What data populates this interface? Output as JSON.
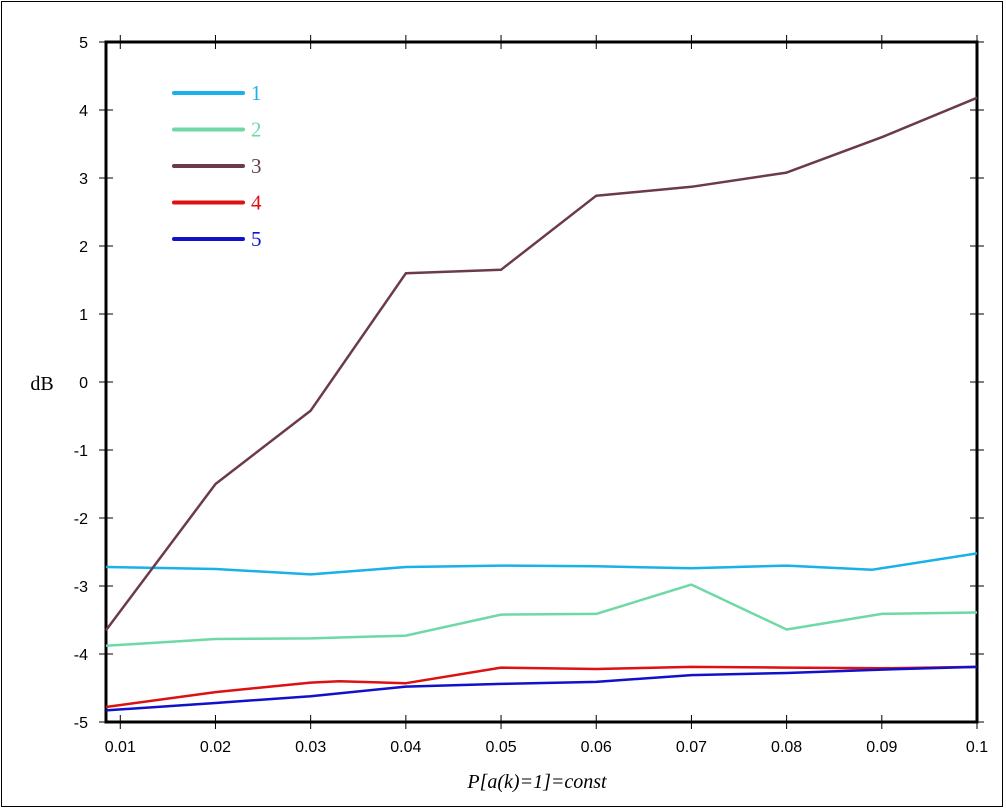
{
  "chart_data": {
    "type": "line",
    "xlabel": "P[a(k)=1]=const",
    "ylabel": "dB",
    "xlim": [
      0.0085,
      0.1
    ],
    "ylim": [
      -5,
      5
    ],
    "x_ticks": [
      0.01,
      0.02,
      0.03,
      0.04,
      0.05,
      0.06,
      0.07,
      0.08,
      0.09,
      0.1
    ],
    "x_tick_labels": [
      "0.01",
      "0.02",
      "0.03",
      "0.04",
      "0.05",
      "0.06",
      "0.07",
      "0.08",
      "0.09",
      "0.1"
    ],
    "y_ticks": [
      5,
      4,
      3,
      2,
      1,
      0,
      -1,
      -2,
      -3,
      -4,
      -5
    ],
    "y_tick_labels": [
      "5",
      "4",
      "3",
      "2",
      "1",
      "0",
      "-1",
      "-2",
      "-3",
      "-4",
      "-5"
    ],
    "grid": false,
    "legend_position": "top-left",
    "series": [
      {
        "name": "1",
        "color": "#1ab0ea",
        "x": [
          0.0085,
          0.02,
          0.03,
          0.04,
          0.05,
          0.06,
          0.07,
          0.08,
          0.089,
          0.1
        ],
        "y": [
          -2.72,
          -2.75,
          -2.83,
          -2.72,
          -2.7,
          -2.71,
          -2.74,
          -2.7,
          -2.76,
          -2.52
        ]
      },
      {
        "name": "2",
        "color": "#6fd9a5",
        "x": [
          0.0085,
          0.02,
          0.03,
          0.04,
          0.05,
          0.06,
          0.07,
          0.08,
          0.09,
          0.1
        ],
        "y": [
          -3.88,
          -3.78,
          -3.77,
          -3.73,
          -3.42,
          -3.41,
          -2.98,
          -3.64,
          -3.41,
          -3.39
        ]
      },
      {
        "name": "3",
        "color": "#6b3a4c",
        "x": [
          0.0085,
          0.02,
          0.03,
          0.04,
          0.05,
          0.06,
          0.07,
          0.08,
          0.09,
          0.1
        ],
        "y": [
          -3.65,
          -1.5,
          -0.42,
          1.6,
          1.65,
          2.74,
          2.87,
          3.08,
          3.6,
          4.18
        ]
      },
      {
        "name": "4",
        "color": "#dd1111",
        "x": [
          0.0085,
          0.02,
          0.03,
          0.033,
          0.04,
          0.05,
          0.06,
          0.07,
          0.08,
          0.09,
          0.1
        ],
        "y": [
          -4.78,
          -4.56,
          -4.42,
          -4.4,
          -4.43,
          -4.2,
          -4.22,
          -4.19,
          -4.2,
          -4.21,
          -4.19
        ]
      },
      {
        "name": "5",
        "color": "#1111cc",
        "x": [
          0.0085,
          0.02,
          0.03,
          0.04,
          0.05,
          0.06,
          0.07,
          0.08,
          0.09,
          0.1
        ],
        "y": [
          -4.83,
          -4.72,
          -4.62,
          -4.48,
          -4.44,
          -4.41,
          -4.31,
          -4.28,
          -4.23,
          -4.19
        ]
      }
    ]
  }
}
